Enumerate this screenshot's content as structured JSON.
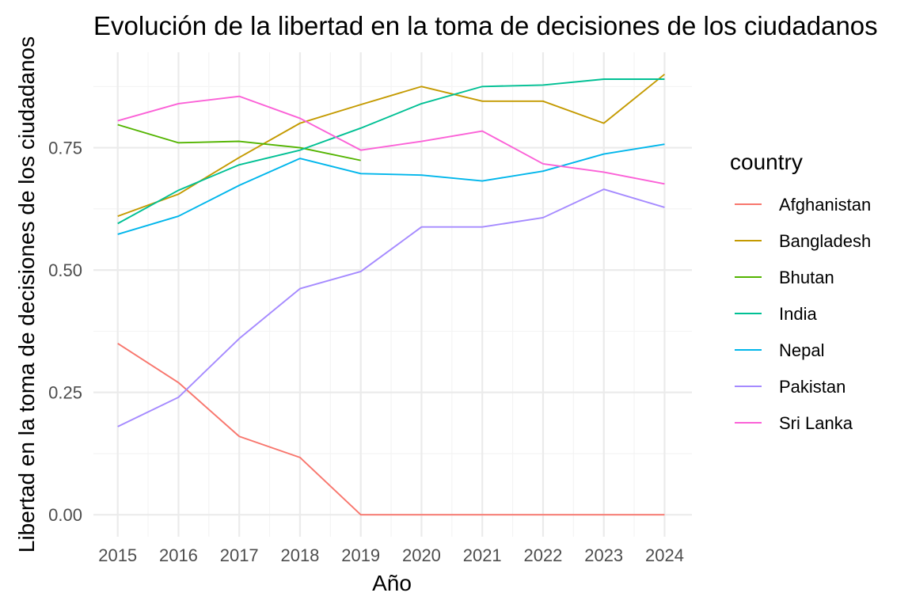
{
  "chart_data": {
    "type": "line",
    "title": "Evolución de la libertad en la toma de decisiones de los ciudadanos",
    "xlabel": "Año",
    "ylabel": "Libertad en la toma de decisiones de los ciudadanos",
    "x": [
      2015,
      2016,
      2017,
      2018,
      2019,
      2020,
      2021,
      2022,
      2023,
      2024
    ],
    "xlim": [
      2014.6,
      2024.45
    ],
    "ylim": [
      -0.045,
      0.945
    ],
    "yticks": [
      0.0,
      0.25,
      0.5,
      0.75
    ],
    "ytick_labels": [
      "0.00",
      "0.25",
      "0.50",
      "0.75"
    ],
    "grid": true,
    "legend_title": "country",
    "legend_position": "right",
    "series": [
      {
        "name": "Afghanistan",
        "color": "#F8766D",
        "values": [
          0.35,
          0.27,
          0.16,
          0.117,
          0.0,
          0.0,
          0.0,
          0.0,
          0.0,
          0.0
        ]
      },
      {
        "name": "Bangladesh",
        "color": "#C49A00",
        "values": [
          0.61,
          0.655,
          0.73,
          0.8,
          0.838,
          0.875,
          0.845,
          0.845,
          0.8,
          0.9
        ]
      },
      {
        "name": "Bhutan",
        "color": "#53B400",
        "values": [
          0.797,
          0.76,
          0.763,
          0.75,
          0.724,
          null,
          null,
          null,
          null,
          null
        ]
      },
      {
        "name": "India",
        "color": "#00C094",
        "values": [
          0.595,
          0.663,
          0.715,
          0.745,
          0.79,
          0.84,
          0.875,
          0.878,
          0.89,
          0.89
        ]
      },
      {
        "name": "Nepal",
        "color": "#00B6EB",
        "values": [
          0.573,
          0.61,
          0.673,
          0.728,
          0.697,
          0.694,
          0.682,
          0.702,
          0.737,
          0.757
        ]
      },
      {
        "name": "Pakistan",
        "color": "#A58AFF",
        "values": [
          0.18,
          0.24,
          0.36,
          0.462,
          0.497,
          0.588,
          0.588,
          0.607,
          0.665,
          0.628
        ]
      },
      {
        "name": "Sri Lanka",
        "color": "#FB61D7",
        "values": [
          0.805,
          0.84,
          0.855,
          0.81,
          0.745,
          0.763,
          0.784,
          0.717,
          0.7,
          0.676
        ]
      }
    ]
  }
}
